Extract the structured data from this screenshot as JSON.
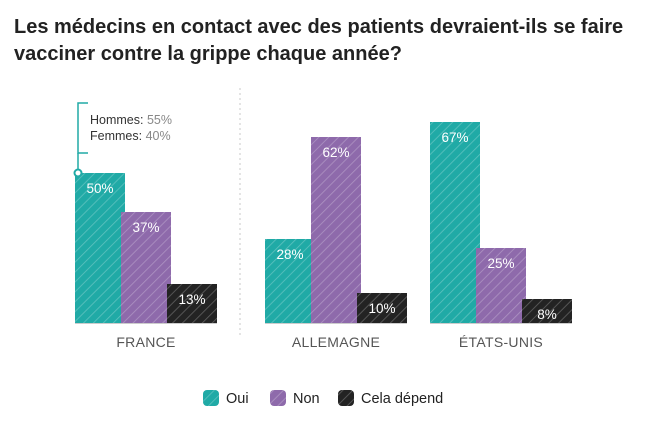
{
  "title": "Les médecins en contact avec des patients devraient-ils se faire vacciner contre la grippe chaque année?",
  "colors": {
    "oui": "#20aaa6",
    "non": "#8e6aab",
    "cela_depend": "#232323",
    "divider": "#c8c8c8",
    "baseline": "#cccccc",
    "annotation": "#20aaa6"
  },
  "chart_data": {
    "type": "bar",
    "title": "Les médecins en contact avec des patients devraient-ils se faire vacciner contre la grippe chaque année?",
    "categories": [
      "FRANCE",
      "ALLEMAGNE",
      "ÉTATS-UNIS"
    ],
    "series": [
      {
        "name": "Oui",
        "color_key": "oui",
        "values": [
          50,
          28,
          67
        ],
        "labels": [
          "50%",
          "28%",
          "67%"
        ]
      },
      {
        "name": "Non",
        "color_key": "non",
        "values": [
          37,
          62,
          25
        ],
        "labels": [
          "37%",
          "62%",
          "25%"
        ]
      },
      {
        "name": "Cela dépend",
        "color_key": "cela_depend",
        "values": [
          13,
          10,
          8
        ],
        "labels": [
          "13%",
          "10%",
          "8%"
        ]
      }
    ],
    "ylim": [
      0,
      67
    ],
    "xlabel": "",
    "ylabel": "",
    "grid": false,
    "legend_position": "bottom-center",
    "annotation": {
      "category": "FRANCE",
      "series": "Oui",
      "lines": [
        {
          "label": "Hommes:",
          "value": "55%"
        },
        {
          "label": "Femmes:",
          "value": "40%"
        }
      ]
    }
  }
}
